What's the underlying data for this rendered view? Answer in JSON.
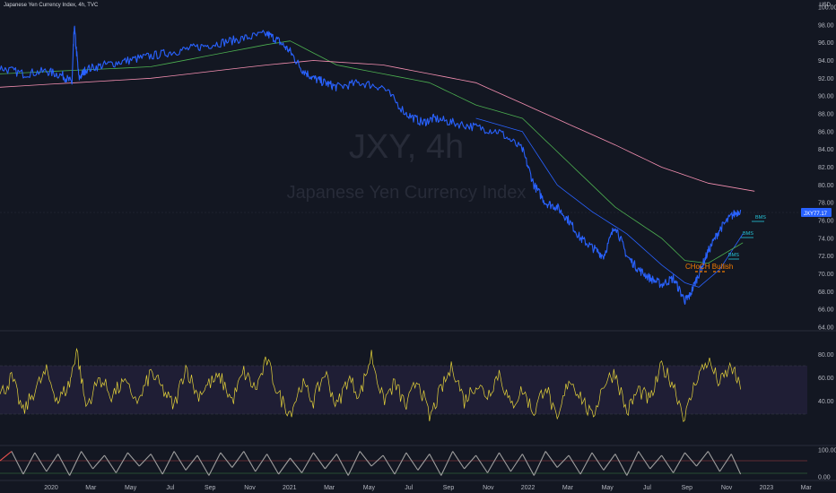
{
  "header": {
    "title": "Japanese Yen Currency Index, 4h, TVC",
    "currency": "USD"
  },
  "watermark": {
    "symbol": "JXY, 4h",
    "name": "Japanese Yen Currency Index"
  },
  "price_label": {
    "symbol": "JXY",
    "value": "77.17"
  },
  "annotations": {
    "choch": "CHoCH Bullish",
    "bms": "BMS"
  },
  "colors": {
    "background": "#131722",
    "price": "#2962ff",
    "ema_fast": "#4caf50",
    "ema_slow": "#f48fb1",
    "ema_short": "#2962ff",
    "rsi": "#e6d43a",
    "rsi_band": "#2a2445",
    "bms": "#26c6da",
    "choch": "#f57c00",
    "stoch_high": "#ef5350",
    "stoch_low": "#4caf50",
    "stoch_mid": "#9e9e9e"
  },
  "chart_data": [
    {
      "type": "line",
      "title": "Japanese Yen Currency Index, 4h, TVC",
      "x_ticks": [
        "2020",
        "Mar",
        "May",
        "Jul",
        "Sep",
        "Nov",
        "2021",
        "Mar",
        "May",
        "Jul",
        "Sep",
        "Nov",
        "2022",
        "Mar",
        "May",
        "Jul",
        "Sep",
        "Nov",
        "2023",
        "Mar"
      ],
      "y_ticks": [
        "100.00",
        "98.00",
        "96.00",
        "94.00",
        "92.00",
        "90.00",
        "88.00",
        "86.00",
        "84.00",
        "82.00",
        "80.00",
        "78.00",
        "76.00",
        "74.00",
        "72.00",
        "70.00",
        "68.00",
        "66.00",
        "64.00"
      ],
      "ylim": [
        64,
        100
      ],
      "xlim": [
        2019.85,
        2023.25
      ],
      "series": [
        {
          "name": "JXY",
          "x": [
            2019.85,
            2019.95,
            2020.05,
            2020.12,
            2020.16,
            2020.17,
            2020.19,
            2020.22,
            2020.3,
            2020.4,
            2020.5,
            2020.6,
            2020.7,
            2020.8,
            2020.9,
            2021.0,
            2021.05,
            2021.1,
            2021.15,
            2021.2,
            2021.25,
            2021.3,
            2021.4,
            2021.5,
            2021.6,
            2021.67,
            2021.72,
            2021.8,
            2021.9,
            2022.0,
            2022.1,
            2022.15,
            2022.2,
            2022.25,
            2022.3,
            2022.35,
            2022.4,
            2022.45,
            2022.5,
            2022.55,
            2022.6,
            2022.65,
            2022.7,
            2022.75,
            2022.8,
            2022.82,
            2022.86,
            2022.9,
            2022.95,
            2023.0,
            2023.04
          ],
          "y": [
            93.2,
            92.5,
            92.8,
            92.3,
            91.5,
            97.8,
            92.0,
            93.0,
            93.5,
            94.0,
            94.5,
            95.0,
            95.5,
            96.0,
            96.5,
            97.0,
            96.2,
            95.0,
            93.0,
            92.0,
            91.5,
            91.0,
            91.5,
            91.0,
            88.0,
            87.0,
            87.5,
            87.0,
            86.5,
            86.0,
            84.0,
            80.0,
            78.0,
            77.5,
            76.0,
            74.0,
            73.0,
            72.0,
            75.5,
            72.0,
            70.5,
            69.5,
            68.8,
            69.5,
            67.0,
            67.5,
            70.0,
            72.5,
            75.0,
            76.5,
            77.2
          ]
        },
        {
          "name": "EMA slow",
          "x": [
            2019.85,
            2020.5,
            2021.0,
            2021.2,
            2021.5,
            2021.9,
            2022.2,
            2022.5,
            2022.7,
            2022.9,
            2023.1
          ],
          "y": [
            91.0,
            92.0,
            93.5,
            94.0,
            93.5,
            91.5,
            88.0,
            84.5,
            82.0,
            80.2,
            79.3
          ]
        },
        {
          "name": "EMA fast",
          "x": [
            2019.85,
            2020.5,
            2021.0,
            2021.1,
            2021.3,
            2021.7,
            2021.9,
            2022.1,
            2022.3,
            2022.5,
            2022.7,
            2022.8,
            2022.9,
            2023.05
          ],
          "y": [
            92.5,
            93.3,
            95.8,
            96.2,
            93.5,
            91.5,
            89.0,
            87.5,
            82.5,
            77.5,
            74.0,
            71.5,
            71.2,
            73.5
          ]
        },
        {
          "name": "EMA short",
          "x": [
            2021.9,
            2022.1,
            2022.25,
            2022.4,
            2022.55,
            2022.7,
            2022.8,
            2022.86,
            2022.95,
            2023.05
          ],
          "y": [
            87.5,
            86.0,
            80.0,
            77.0,
            74.5,
            71.0,
            69.0,
            68.5,
            70.5,
            74.5
          ]
        }
      ]
    },
    {
      "type": "line",
      "y_ticks": [
        "80.00",
        "60.00",
        "40.00"
      ],
      "ylim": [
        4,
        96
      ],
      "band": [
        30,
        70
      ],
      "series": [
        {
          "name": "RSI",
          "x": [
            2019.85,
            2019.9,
            2019.95,
            2020.0,
            2020.05,
            2020.1,
            2020.15,
            2020.18,
            2020.22,
            2020.28,
            2020.33,
            2020.38,
            2020.45,
            2020.5,
            2020.55,
            2020.6,
            2020.65,
            2020.7,
            2020.75,
            2020.8,
            2020.85,
            2020.9,
            2020.95,
            2021.0,
            2021.05,
            2021.1,
            2021.15,
            2021.2,
            2021.25,
            2021.3,
            2021.35,
            2021.4,
            2021.45,
            2021.5,
            2021.55,
            2021.6,
            2021.65,
            2021.7,
            2021.75,
            2021.8,
            2021.85,
            2021.9,
            2021.95,
            2022.0,
            2022.05,
            2022.1,
            2022.15,
            2022.2,
            2022.25,
            2022.3,
            2022.35,
            2022.4,
            2022.45,
            2022.5,
            2022.55,
            2022.6,
            2022.65,
            2022.7,
            2022.75,
            2022.8,
            2022.85,
            2022.9,
            2022.95,
            2023.0,
            2023.04
          ],
          "y": [
            45,
            60,
            30,
            50,
            65,
            40,
            55,
            85,
            35,
            60,
            45,
            55,
            40,
            65,
            50,
            35,
            70,
            45,
            55,
            60,
            40,
            65,
            50,
            75,
            45,
            30,
            55,
            40,
            65,
            35,
            60,
            45,
            80,
            40,
            55,
            35,
            60,
            25,
            50,
            70,
            40,
            55,
            45,
            65,
            35,
            50,
            30,
            55,
            20,
            60,
            45,
            25,
            55,
            65,
            30,
            50,
            40,
            70,
            55,
            25,
            60,
            75,
            55,
            70,
            50
          ]
        }
      ]
    },
    {
      "type": "line",
      "y_ticks": [
        "100.00",
        "0.00"
      ],
      "ylim": [
        0,
        100
      ],
      "series": [
        {
          "name": "Stoch",
          "x": [
            2019.85,
            2019.9,
            2019.95,
            2020.0,
            2020.05,
            2020.1,
            2020.15,
            2020.2,
            2020.25,
            2020.3,
            2020.35,
            2020.4,
            2020.45,
            2020.5,
            2020.55,
            2020.6,
            2020.65,
            2020.7,
            2020.75,
            2020.8,
            2020.85,
            2020.9,
            2020.95,
            2021.0,
            2021.05,
            2021.1,
            2021.15,
            2021.2,
            2021.25,
            2021.3,
            2021.35,
            2021.4,
            2021.45,
            2021.5,
            2021.55,
            2021.6,
            2021.65,
            2021.7,
            2021.75,
            2021.8,
            2021.85,
            2021.9,
            2021.95,
            2022.0,
            2022.05,
            2022.1,
            2022.15,
            2022.2,
            2022.25,
            2022.3,
            2022.35,
            2022.4,
            2022.45,
            2022.5,
            2022.55,
            2022.6,
            2022.65,
            2022.7,
            2022.75,
            2022.8,
            2022.85,
            2022.9,
            2022.95,
            2023.0,
            2023.04
          ],
          "y": [
            60,
            95,
            10,
            90,
            20,
            85,
            5,
            95,
            30,
            80,
            15,
            90,
            40,
            85,
            10,
            95,
            25,
            80,
            5,
            90,
            35,
            95,
            20,
            85,
            10,
            70,
            15,
            90,
            30,
            85,
            5,
            95,
            40,
            80,
            10,
            90,
            25,
            85,
            5,
            95,
            30,
            80,
            15,
            90,
            20,
            85,
            5,
            95,
            35,
            80,
            10,
            90,
            25,
            85,
            5,
            95,
            30,
            80,
            15,
            90,
            40,
            95,
            20,
            85,
            10
          ]
        }
      ]
    }
  ]
}
